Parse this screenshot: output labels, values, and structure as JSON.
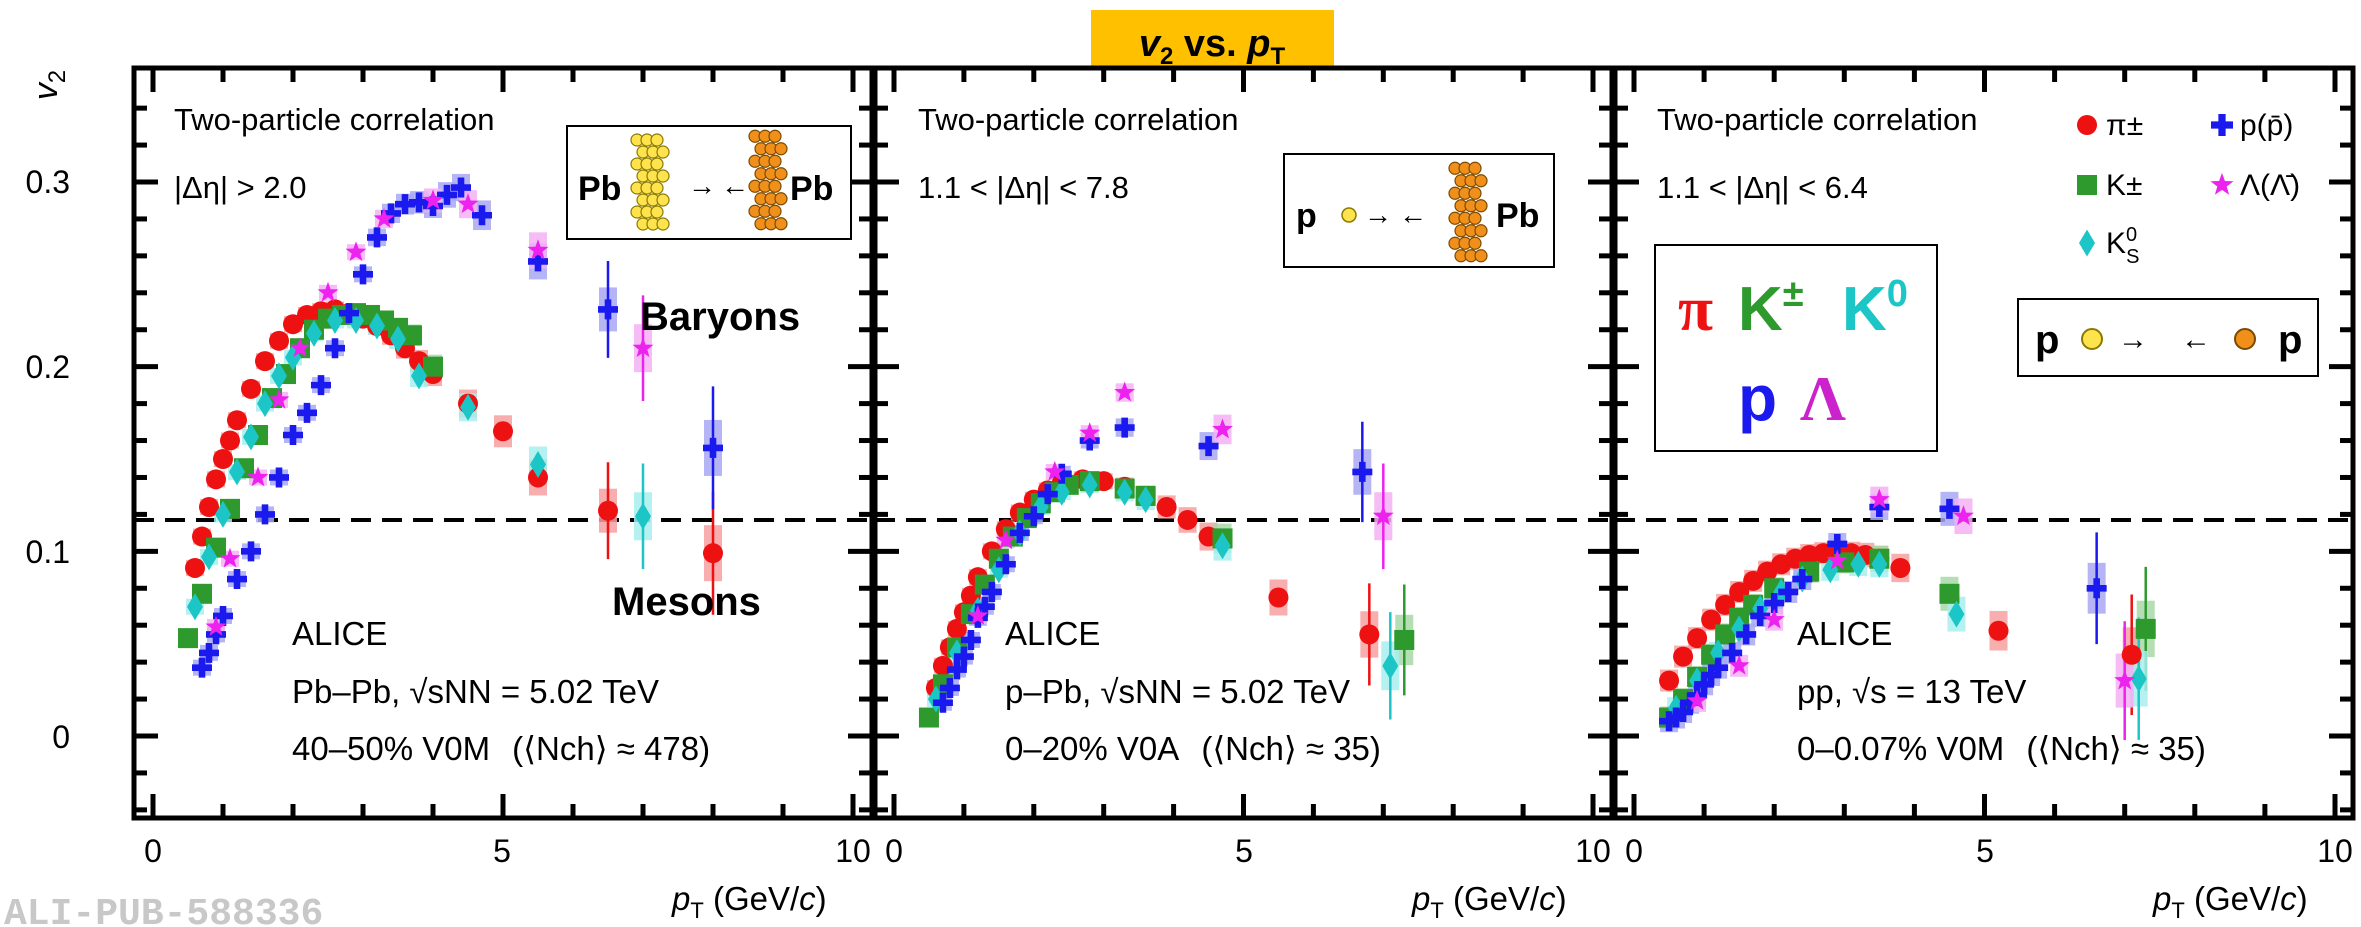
{
  "figure": {
    "title": "v2 vs. pT",
    "title_v": "v",
    "title_v_sub": "2",
    "title_mid": " vs. ",
    "title_p": "p",
    "title_p_sub": "T",
    "ylabel_main": "v",
    "ylabel_sub": "2",
    "xlabel_main": "p",
    "xlabel_sub": "T",
    "xlabel_rest": " (GeV/",
    "xlabel_c": "c",
    "xlabel_close": ")",
    "footer": "ALI-PUB-588336",
    "yticks": [
      "0",
      "0.1",
      "0.2",
      "0.3"
    ],
    "xticks": [
      "0",
      "5",
      "10"
    ],
    "colors": {
      "pion": "#ee1111",
      "kaon": "#2e9a2e",
      "k0s": "#1cc6c6",
      "proton": "#1a1aee",
      "lambda": "#ee22ee",
      "title_bg": "#ffc000"
    }
  },
  "legend": {
    "pion": "π±",
    "kaon": "K±",
    "k0s": "K0S",
    "proton": "p(p̄)",
    "lambda": "Λ(Λ̄)"
  },
  "big_label": {
    "pi": "π",
    "kpm": "K±",
    "k0": "K0",
    "p": "p",
    "lambda": "Λ"
  },
  "panels": [
    {
      "method": "Two-particle correlation",
      "eta_cut": "|Δη| > 2.0",
      "experiment": "ALICE",
      "system_prefix": "Pb–Pb, ",
      "energy_var": "√sNN",
      "energy_value": " = 5.02 TeV",
      "centrality": "40–50% V0M",
      "nch": "⟨Nch⟩ ≈ 478",
      "beam_left": "Pb",
      "beam_right": "Pb",
      "label_baryons": "Baryons",
      "label_mesons": "Mesons"
    },
    {
      "method": "Two-particle correlation",
      "eta_cut": "1.1 < |Δη| < 7.8",
      "experiment": "ALICE",
      "system_prefix": "p–Pb, ",
      "energy_var": "√sNN",
      "energy_value": " = 5.02 TeV",
      "centrality": "0–20% V0A",
      "nch": "⟨Nch⟩ ≈ 35",
      "beam_left": "p",
      "beam_right": "Pb"
    },
    {
      "method": "Two-particle correlation",
      "eta_cut": "1.1 < |Δη| < 6.4",
      "experiment": "ALICE",
      "system_prefix": "pp, ",
      "energy_var": "√s",
      "energy_value": " = 13 TeV",
      "centrality": "0–0.07% V0M",
      "nch": "⟨Nch⟩ ≈ 35",
      "beam_left": "p",
      "beam_right": "p"
    }
  ],
  "chart_data": [
    {
      "type": "scatter",
      "panel": "Pb-Pb 40-50%",
      "xlim": [
        0,
        10
      ],
      "ylim": [
        -0.04,
        0.36
      ],
      "reference_line_y": 0.117,
      "series": [
        {
          "name": "π±",
          "x": [
            0.6,
            0.7,
            0.8,
            0.9,
            1.0,
            1.1,
            1.2,
            1.4,
            1.6,
            1.8,
            2.0,
            2.2,
            2.4,
            2.6,
            2.8,
            3.0,
            3.2,
            3.4,
            3.6,
            3.8,
            4.0,
            4.5,
            5.0,
            5.5,
            6.5,
            8.0
          ],
          "y": [
            0.091,
            0.108,
            0.124,
            0.139,
            0.15,
            0.16,
            0.171,
            0.188,
            0.203,
            0.214,
            0.223,
            0.228,
            0.23,
            0.231,
            0.229,
            0.226,
            0.222,
            0.217,
            0.21,
            0.203,
            0.196,
            0.18,
            0.165,
            0.14,
            0.122,
            0.099
          ]
        },
        {
          "name": "K±",
          "x": [
            0.5,
            0.7,
            0.9,
            1.1,
            1.3,
            1.5,
            1.7,
            1.9,
            2.1,
            2.3,
            2.5,
            2.7,
            2.9,
            3.1,
            3.3,
            3.5,
            3.7,
            4.0
          ],
          "y": [
            0.053,
            0.077,
            0.102,
            0.123,
            0.145,
            0.163,
            0.183,
            0.196,
            0.21,
            0.22,
            0.226,
            0.228,
            0.229,
            0.228,
            0.225,
            0.221,
            0.217,
            0.2
          ]
        },
        {
          "name": "K0S",
          "x": [
            0.6,
            0.8,
            1.0,
            1.2,
            1.4,
            1.6,
            1.8,
            2.0,
            2.3,
            2.6,
            2.9,
            3.2,
            3.5,
            3.8,
            4.5,
            5.5,
            7.0
          ],
          "y": [
            0.07,
            0.097,
            0.12,
            0.143,
            0.162,
            0.18,
            0.195,
            0.205,
            0.218,
            0.225,
            0.225,
            0.222,
            0.215,
            0.195,
            0.178,
            0.147,
            0.119
          ]
        },
        {
          "name": "p(p̄)",
          "x": [
            0.7,
            0.8,
            0.9,
            1.0,
            1.2,
            1.4,
            1.6,
            1.8,
            2.0,
            2.2,
            2.4,
            2.6,
            2.8,
            3.0,
            3.2,
            3.4,
            3.6,
            3.8,
            4.0,
            4.2,
            4.4,
            4.7,
            5.5,
            6.5,
            8.0
          ],
          "y": [
            0.037,
            0.045,
            0.055,
            0.065,
            0.085,
            0.1,
            0.12,
            0.14,
            0.163,
            0.175,
            0.19,
            0.21,
            0.229,
            0.25,
            0.27,
            0.283,
            0.288,
            0.289,
            0.287,
            0.293,
            0.297,
            0.282,
            0.257,
            0.231,
            0.156
          ]
        },
        {
          "name": "Λ(Λ̄)",
          "x": [
            0.9,
            1.1,
            1.5,
            1.8,
            2.1,
            2.5,
            2.9,
            3.3,
            4.0,
            4.5,
            5.5,
            7.0
          ],
          "y": [
            0.059,
            0.096,
            0.14,
            0.182,
            0.21,
            0.24,
            0.262,
            0.28,
            0.29,
            0.288,
            0.263,
            0.21
          ]
        }
      ]
    },
    {
      "type": "scatter",
      "panel": "p-Pb 0-20%",
      "xlim": [
        0,
        10
      ],
      "ylim": [
        -0.04,
        0.36
      ],
      "reference_line_y": 0.117,
      "series": [
        {
          "name": "π±",
          "x": [
            0.6,
            0.7,
            0.8,
            0.9,
            1.0,
            1.1,
            1.2,
            1.4,
            1.6,
            1.8,
            2.0,
            2.2,
            2.4,
            2.7,
            3.0,
            3.3,
            3.6,
            3.9,
            4.2,
            4.5,
            5.5,
            6.8
          ],
          "y": [
            0.026,
            0.038,
            0.048,
            0.058,
            0.067,
            0.076,
            0.086,
            0.1,
            0.112,
            0.121,
            0.128,
            0.133,
            0.137,
            0.139,
            0.138,
            0.135,
            0.13,
            0.124,
            0.117,
            0.108,
            0.075,
            0.055
          ]
        },
        {
          "name": "K±",
          "x": [
            0.5,
            0.7,
            0.9,
            1.1,
            1.3,
            1.5,
            1.7,
            1.9,
            2.1,
            2.3,
            2.5,
            2.8,
            3.3,
            3.6,
            4.7,
            7.3
          ],
          "y": [
            0.01,
            0.028,
            0.048,
            0.066,
            0.082,
            0.096,
            0.108,
            0.118,
            0.126,
            0.132,
            0.136,
            0.138,
            0.134,
            0.13,
            0.107,
            0.052
          ]
        },
        {
          "name": "K0S",
          "x": [
            0.6,
            0.9,
            1.2,
            1.5,
            1.8,
            2.1,
            2.4,
            2.8,
            3.3,
            3.6,
            4.7,
            7.1
          ],
          "y": [
            0.02,
            0.045,
            0.068,
            0.09,
            0.11,
            0.124,
            0.132,
            0.136,
            0.132,
            0.128,
            0.103,
            0.038
          ]
        },
        {
          "name": "p(p̄)",
          "x": [
            0.7,
            0.8,
            0.9,
            1.0,
            1.1,
            1.2,
            1.3,
            1.4,
            1.6,
            1.8,
            2.0,
            2.2,
            2.4,
            2.8,
            3.3,
            4.5,
            6.7
          ],
          "y": [
            0.018,
            0.026,
            0.036,
            0.043,
            0.052,
            0.064,
            0.07,
            0.078,
            0.093,
            0.11,
            0.119,
            0.131,
            0.142,
            0.16,
            0.167,
            0.157,
            0.143
          ]
        },
        {
          "name": "Λ(Λ̄)",
          "x": [
            1.2,
            1.6,
            2.3,
            2.8,
            3.3,
            4.7,
            7.0
          ],
          "y": [
            0.065,
            0.106,
            0.143,
            0.164,
            0.186,
            0.166,
            0.119
          ]
        }
      ]
    },
    {
      "type": "scatter",
      "panel": "pp 0-0.07%",
      "xlim": [
        0,
        10
      ],
      "ylim": [
        -0.04,
        0.36
      ],
      "reference_line_y": 0.117,
      "series": [
        {
          "name": "π±",
          "x": [
            0.5,
            0.7,
            0.9,
            1.1,
            1.3,
            1.5,
            1.7,
            1.9,
            2.1,
            2.3,
            2.5,
            2.7,
            2.9,
            3.1,
            3.3,
            3.5,
            3.8,
            5.2,
            7.1
          ],
          "y": [
            0.03,
            0.043,
            0.053,
            0.063,
            0.071,
            0.078,
            0.084,
            0.089,
            0.093,
            0.096,
            0.098,
            0.099,
            0.099,
            0.099,
            0.098,
            0.096,
            0.091,
            0.057,
            0.044
          ]
        },
        {
          "name": "K±",
          "x": [
            0.5,
            0.7,
            0.9,
            1.1,
            1.3,
            1.5,
            1.7,
            2.0,
            2.5,
            3.0,
            3.5,
            4.5,
            7.3
          ],
          "y": [
            0.01,
            0.02,
            0.032,
            0.044,
            0.055,
            0.064,
            0.071,
            0.08,
            0.089,
            0.094,
            0.096,
            0.077,
            0.058
          ]
        },
        {
          "name": "K0S",
          "x": [
            0.6,
            0.9,
            1.2,
            1.5,
            1.8,
            2.1,
            2.4,
            2.8,
            3.2,
            3.5,
            4.6,
            7.2
          ],
          "y": [
            0.015,
            0.03,
            0.045,
            0.058,
            0.069,
            0.078,
            0.085,
            0.09,
            0.093,
            0.093,
            0.066,
            0.031
          ]
        },
        {
          "name": "p(p̄)",
          "x": [
            0.5,
            0.6,
            0.7,
            0.8,
            0.9,
            1.0,
            1.1,
            1.2,
            1.4,
            1.6,
            1.8,
            2.0,
            2.2,
            2.4,
            2.9,
            3.5,
            4.5,
            6.6
          ],
          "y": [
            0.008,
            0.01,
            0.013,
            0.018,
            0.022,
            0.028,
            0.033,
            0.037,
            0.045,
            0.055,
            0.065,
            0.072,
            0.078,
            0.085,
            0.104,
            0.124,
            0.123,
            0.08
          ]
        },
        {
          "name": "Λ(Λ̄)",
          "x": [
            0.9,
            1.5,
            2.0,
            2.9,
            3.5,
            4.7,
            7.0
          ],
          "y": [
            0.019,
            0.038,
            0.063,
            0.095,
            0.128,
            0.119,
            0.03
          ]
        }
      ]
    }
  ]
}
